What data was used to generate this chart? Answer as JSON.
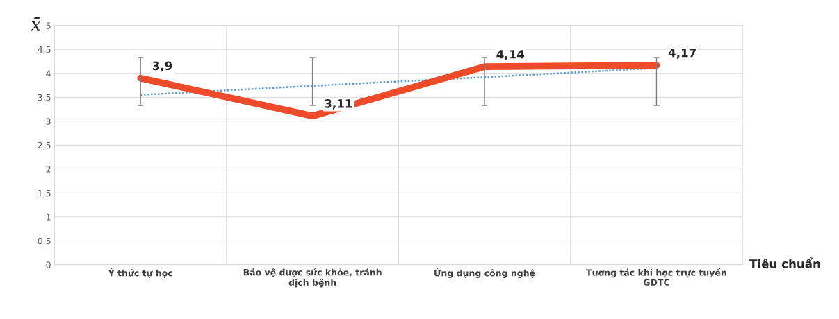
{
  "chart_data": {
    "type": "line",
    "ylabel": "x̄",
    "xlabel": "Tiêu chuẩn",
    "categories": [
      "Ý thức tự học",
      "Bảo vệ được sức khỏe, tránh\ndịch bệnh",
      "Ứng dụng công nghệ",
      "Tương tác khi học trực tuyến\nGDTC"
    ],
    "series": [
      {
        "color": "#ee4b2b",
        "values": [
          3.9,
          3.11,
          4.14,
          4.17
        ],
        "value_labels": [
          "3,9",
          "3,11",
          "4,14",
          "4,17"
        ],
        "errors": [
          [
            3.33,
            4.33
          ],
          [
            3.33,
            4.33
          ],
          [
            3.33,
            4.33
          ],
          [
            3.33,
            4.33
          ]
        ]
      },
      {
        "color": "#5b9bd5",
        "values": [
          3.55,
          3.74,
          3.92,
          4.11
        ],
        "line_style": "dotted"
      }
    ],
    "ylim": [
      0,
      5
    ],
    "yticks": [
      0,
      {
        "value": 0.5,
        "label": "0,5"
      },
      1,
      {
        "value": 1.5,
        "label": "1,5"
      },
      2,
      {
        "value": 2.5,
        "label": "2,5"
      },
      3,
      {
        "value": 3.5,
        "label": "3,5"
      },
      4,
      {
        "value": 4.5,
        "label": "4,5"
      },
      5
    ],
    "grid": true,
    "marker": "none"
  }
}
